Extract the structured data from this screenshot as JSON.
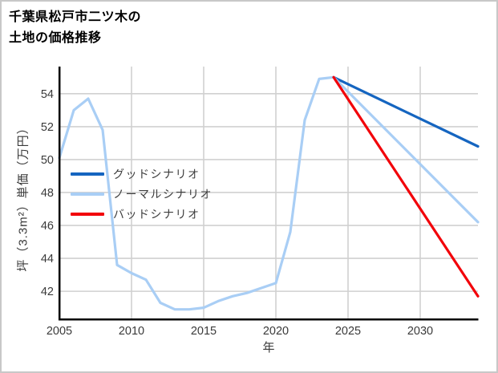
{
  "page": {
    "background": "#ffffff",
    "border_color": "#c8c8c8"
  },
  "title_lines": [
    "千葉県松戸市二ツ木の",
    "土地の価格推移"
  ],
  "chart_data": {
    "type": "line",
    "title": "千葉県松戸市二ツ木の土地の価格推移",
    "xlabel": "年",
    "ylabel": "坪（3.3m²）単価（万円）",
    "xlim": [
      2005,
      2034
    ],
    "ylim": [
      40.3,
      55.65
    ],
    "x_ticks": [
      2005,
      2010,
      2015,
      2020,
      2025,
      2030
    ],
    "y_ticks": [
      42,
      44,
      46,
      48,
      50,
      52,
      54
    ],
    "grid": true,
    "legend_position": "inside-upper-left",
    "colors": {
      "grid": "#d0d0d0",
      "axis": "#000000",
      "tick_text": "#3a3a3a",
      "legend_text": "#3d3d3d"
    },
    "series": [
      {
        "name": "グッドシナリオ",
        "color": "#1565c0",
        "x": [
          2024,
          2034
        ],
        "values": [
          55.0,
          50.8
        ]
      },
      {
        "name": "ノーマルシナリオ",
        "color": "#a9cef5",
        "x": [
          2005,
          2006,
          2007,
          2008,
          2009,
          2010,
          2011,
          2012,
          2013,
          2014,
          2015,
          2016,
          2017,
          2018,
          2019,
          2020,
          2021,
          2022,
          2023,
          2024,
          2034
        ],
        "values": [
          50.1,
          53.0,
          53.7,
          51.8,
          43.6,
          43.1,
          42.7,
          41.3,
          40.9,
          40.9,
          41.0,
          41.4,
          41.7,
          41.9,
          42.2,
          42.5,
          45.6,
          52.4,
          54.9,
          55.0,
          46.2
        ]
      },
      {
        "name": "バッドシナリオ",
        "color": "#f2030a",
        "x": [
          2024,
          2034
        ],
        "values": [
          55.0,
          41.7
        ]
      }
    ]
  }
}
